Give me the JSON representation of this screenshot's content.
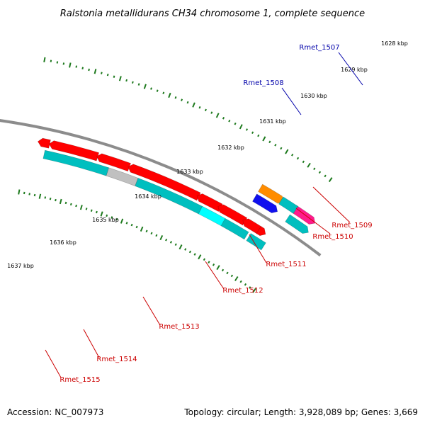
{
  "title": "Ralstonia metallidurans CH34 chromosome 1, complete sequence",
  "footer": {
    "accession": "Accession: NC_007973",
    "summary": "Topology: circular; Length: 3,928,089 bp; Genes: 3,669"
  },
  "colors": {
    "backbone": "#8c8c8c",
    "tick": "#1e7a1e",
    "label_forward": "#0000aa",
    "label_reverse": "#cc0000"
  },
  "kbp_ticks": [
    "1628 kbp",
    "1629 kbp",
    "1630 kbp",
    "1631 kbp",
    "1632 kbp",
    "1633 kbp",
    "1634 kbp",
    "1635 kbp",
    "1636 kbp",
    "1637 kbp"
  ],
  "genes": [
    {
      "name": "Rmet_1507",
      "strand": "forward",
      "color_top": "#ff1a8c",
      "color_mid": "#00bfbf"
    },
    {
      "name": "Rmet_1508",
      "strand": "forward",
      "color_top": "#ff8c00",
      "color_mid": "#1010ee"
    },
    {
      "name": "Rmet_1509",
      "strand": "reverse",
      "color_top": "#ff0000",
      "color_mid": "#00bfbf"
    },
    {
      "name": "Rmet_1510",
      "strand": "reverse",
      "color_top": "#ff0000",
      "color_mid": "#00bfbf"
    },
    {
      "name": "Rmet_1511",
      "strand": "reverse",
      "color_top": "#ff0000",
      "color_mid": "#00bfbf"
    },
    {
      "name": "Rmet_1512",
      "strand": "reverse",
      "color_top": "#ff0000",
      "color_mid": "#00ffff"
    },
    {
      "name": "Rmet_1513",
      "strand": "reverse",
      "color_top": "#ff0000",
      "color_mid": "#00bfbf"
    },
    {
      "name": "Rmet_1514",
      "strand": "reverse",
      "color_top": "#ff0000",
      "color_mid": "#c0c0c0"
    },
    {
      "name": "Rmet_1515",
      "strand": "reverse",
      "color_top": "#ff0000",
      "color_mid": "#00bfbf"
    }
  ]
}
